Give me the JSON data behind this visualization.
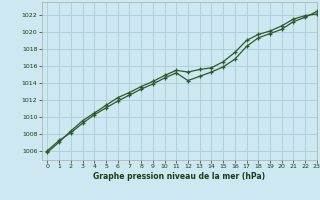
{
  "title": "Graphe pression niveau de la mer (hPa)",
  "background_color": "#cde8f0",
  "grid_color": "#aacdd8",
  "line_color": "#2d5a2d",
  "xlim": [
    -0.5,
    23
  ],
  "ylim": [
    1005.0,
    1023.5
  ],
  "xticks": [
    0,
    1,
    2,
    3,
    4,
    5,
    6,
    7,
    8,
    9,
    10,
    11,
    12,
    13,
    14,
    15,
    16,
    17,
    18,
    19,
    20,
    21,
    22,
    23
  ],
  "yticks": [
    1006,
    1008,
    1010,
    1012,
    1014,
    1016,
    1018,
    1020,
    1022
  ],
  "series1_x": [
    0,
    1,
    2,
    3,
    4,
    5,
    6,
    7,
    8,
    9,
    10,
    11,
    12,
    13,
    14,
    15,
    16,
    17,
    18,
    19,
    20,
    21,
    22,
    23
  ],
  "series1_y": [
    1006.1,
    1007.3,
    1008.2,
    1009.3,
    1010.3,
    1011.1,
    1011.9,
    1012.6,
    1013.3,
    1013.9,
    1014.6,
    1015.2,
    1014.3,
    1014.8,
    1015.3,
    1015.9,
    1016.8,
    1018.3,
    1019.3,
    1019.8,
    1020.3,
    1021.2,
    1021.7,
    1022.4
  ],
  "series2_x": [
    0,
    1,
    2,
    3,
    4,
    5,
    6,
    7,
    8,
    9,
    10,
    11,
    12,
    13,
    14,
    15,
    16,
    17,
    18,
    19,
    20,
    21,
    22,
    23
  ],
  "series2_y": [
    1005.9,
    1007.1,
    1008.4,
    1009.6,
    1010.5,
    1011.4,
    1012.3,
    1012.9,
    1013.6,
    1014.2,
    1014.9,
    1015.5,
    1015.3,
    1015.6,
    1015.8,
    1016.5,
    1017.6,
    1019.0,
    1019.7,
    1020.1,
    1020.7,
    1021.5,
    1021.9,
    1022.1
  ]
}
